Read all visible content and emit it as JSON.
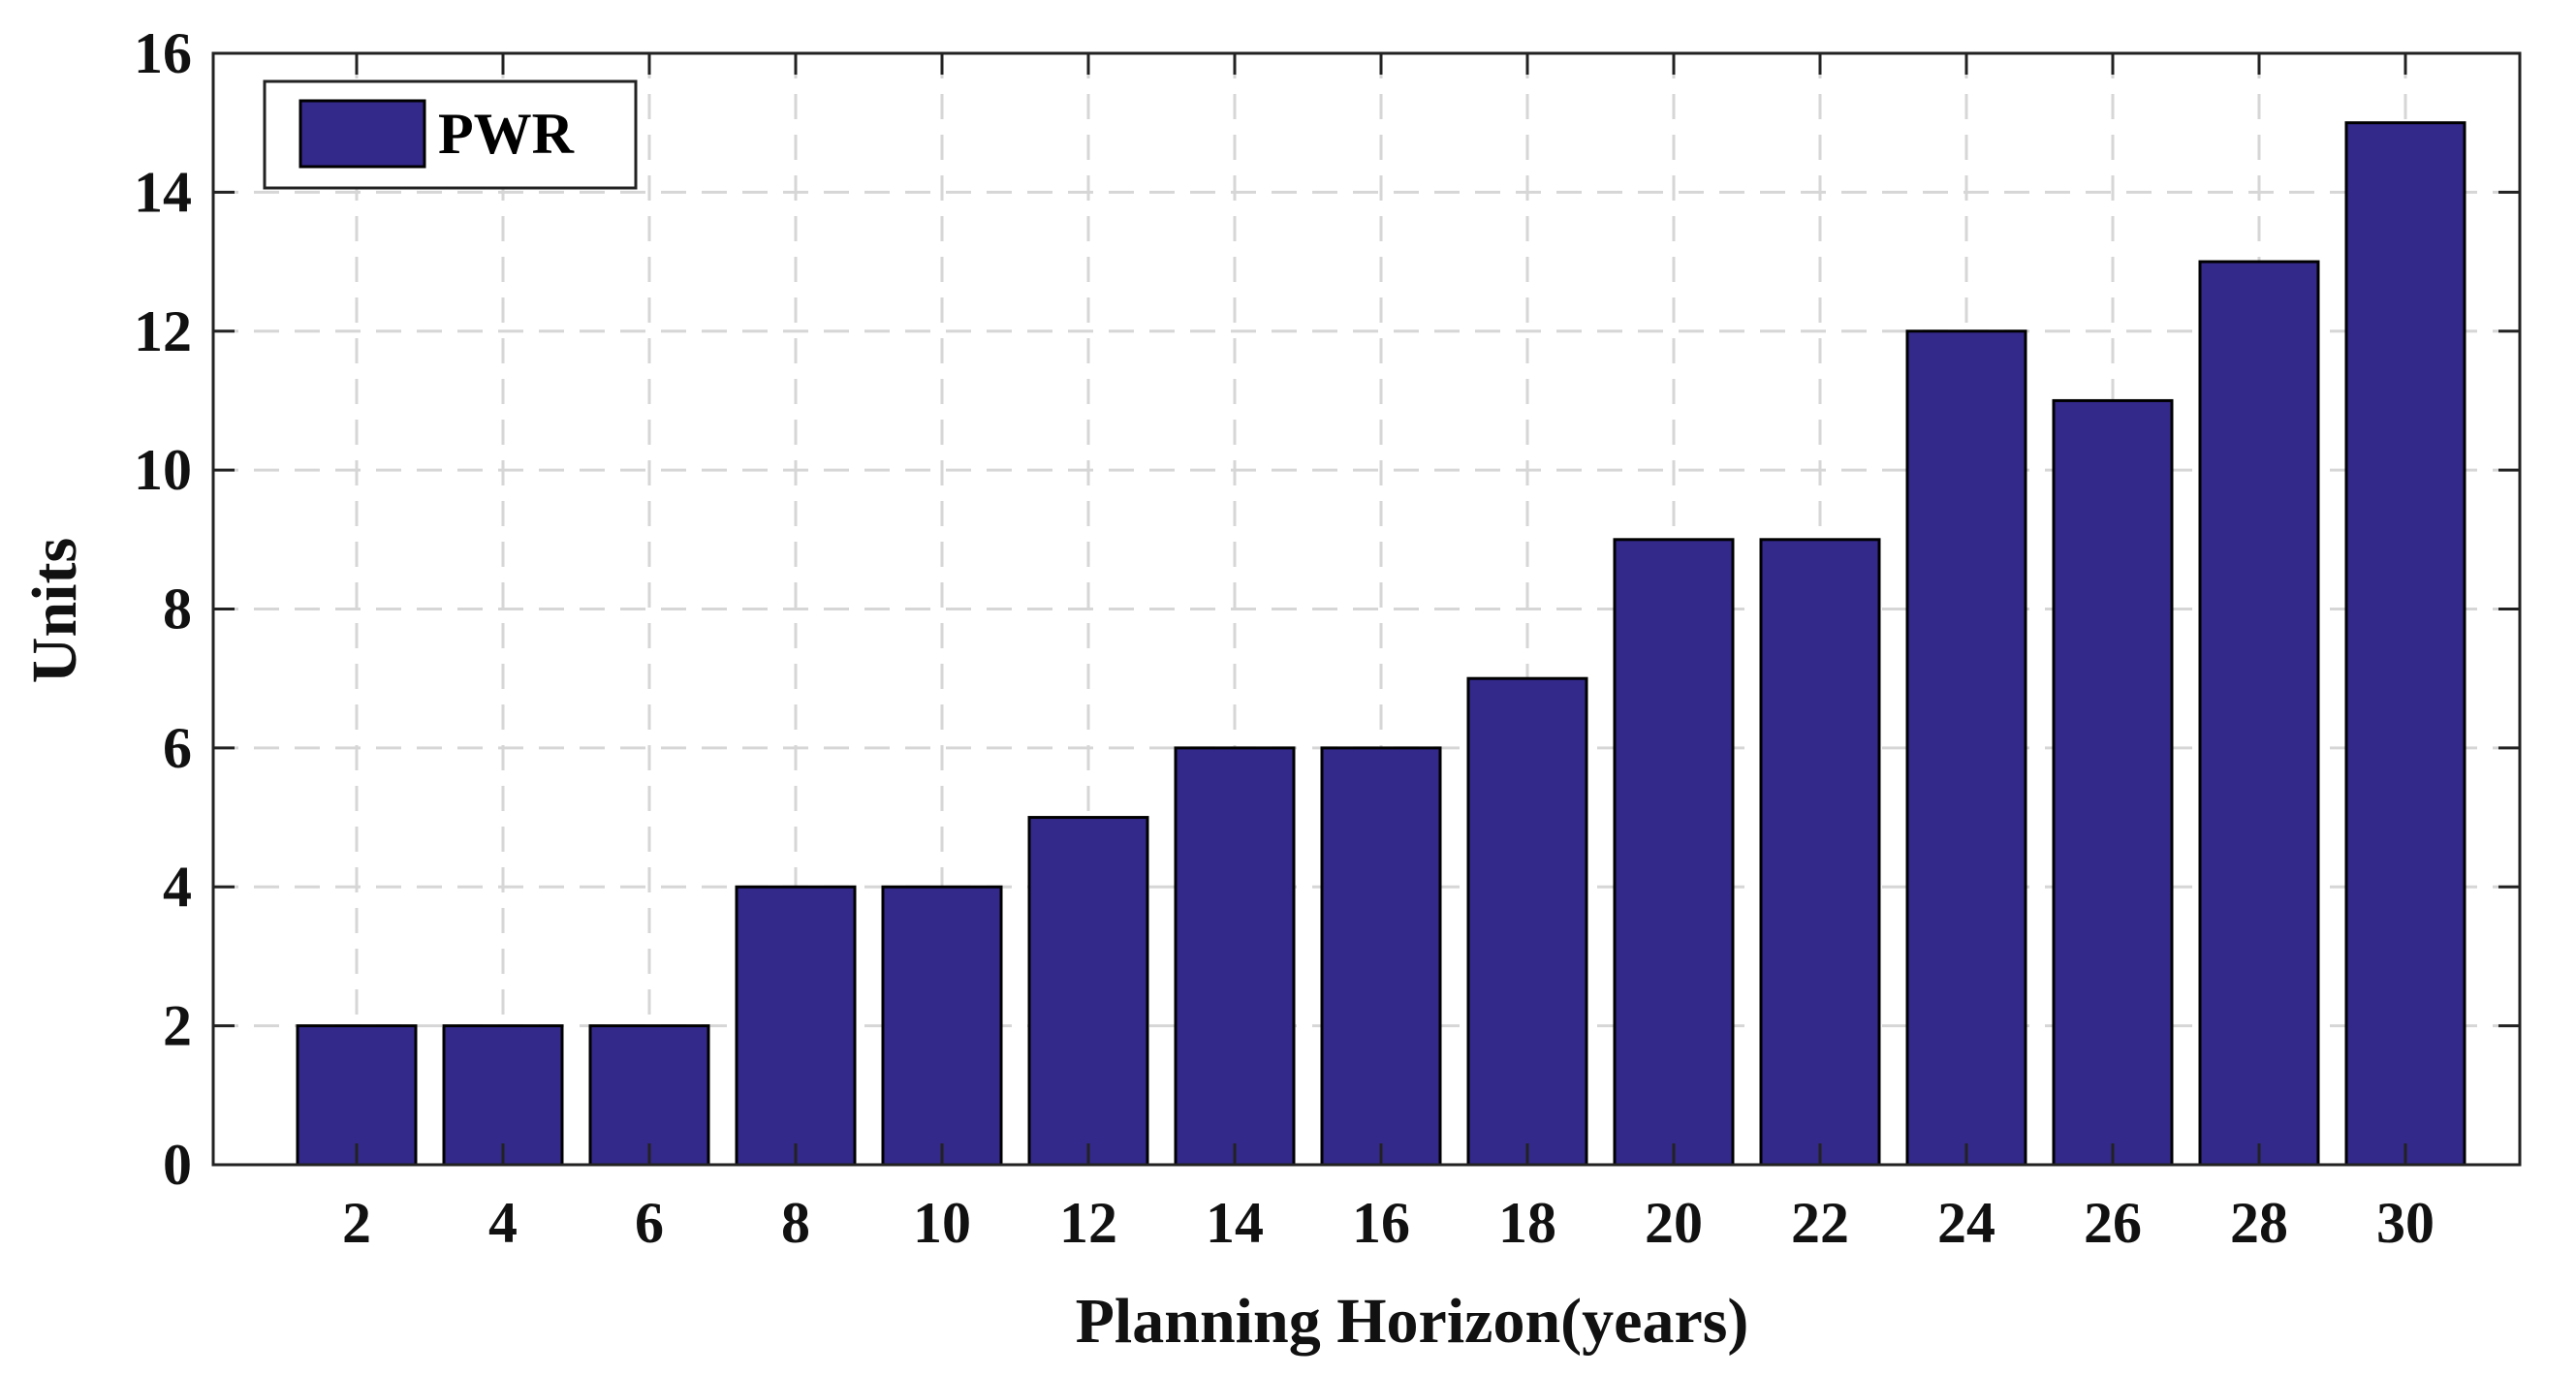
{
  "chart_data": {
    "type": "bar",
    "categories": [
      "2",
      "4",
      "6",
      "8",
      "10",
      "12",
      "14",
      "16",
      "18",
      "20",
      "22",
      "24",
      "26",
      "28",
      "30"
    ],
    "series": [
      {
        "name": "PWR",
        "values": [
          2,
          2,
          2,
          4,
          4,
          5,
          6,
          6,
          7,
          9,
          9,
          12,
          11,
          13,
          15
        ],
        "color": "#33298a"
      }
    ],
    "xlabel": "Planning Horizon(years)",
    "ylabel": "Units",
    "ylim": [
      0,
      16
    ],
    "yticks": [
      "0",
      "2",
      "4",
      "6",
      "8",
      "10",
      "12",
      "14",
      "16"
    ],
    "grid": true,
    "legend_position": "top-left"
  }
}
